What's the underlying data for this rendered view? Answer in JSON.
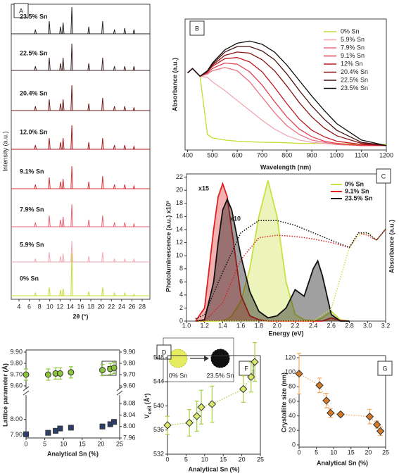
{
  "chart_data": [
    {
      "type": "spectra",
      "panel": "A",
      "xlabel": "2θ (°)",
      "ylabel": "Intensity (a.u.)",
      "xlim": [
        2.5,
        29.5
      ],
      "xticks": [
        4,
        6,
        8,
        10,
        12,
        14,
        16,
        18,
        20,
        22,
        24,
        26,
        28
      ],
      "x": [
        7.2,
        9.9,
        12.1,
        12.6,
        14.3,
        17.6,
        20.3,
        22.6,
        24.6,
        26.4
      ],
      "series": [
        {
          "name": "23.5% Sn",
          "color": "#222222",
          "values": [
            0.3,
            0.9,
            0.5,
            0.8,
            1.9,
            0.5,
            0.9,
            0.3,
            0.4,
            0.3
          ]
        },
        {
          "name": "22.5% Sn",
          "color": "#3a2020",
          "values": [
            0.3,
            0.9,
            0.5,
            0.9,
            1.9,
            0.5,
            0.9,
            0.3,
            0.3,
            0.3
          ]
        },
        {
          "name": "20.4% Sn",
          "color": "#6b1a1a",
          "values": [
            0.3,
            0.8,
            0.5,
            0.8,
            1.8,
            0.5,
            0.9,
            0.3,
            0.3,
            0.2
          ]
        },
        {
          "name": "12.0% Sn",
          "color": "#a8181e",
          "values": [
            0.3,
            0.8,
            0.5,
            0.8,
            1.7,
            0.5,
            0.8,
            0.3,
            0.3,
            0.2
          ]
        },
        {
          "name": "9.1% Sn",
          "color": "#d83038",
          "values": [
            0.3,
            0.8,
            0.5,
            0.7,
            1.6,
            0.5,
            0.9,
            0.3,
            0.3,
            0.2
          ]
        },
        {
          "name": "7.9% Sn",
          "color": "#e86070",
          "values": [
            0.3,
            0.8,
            0.5,
            0.7,
            1.6,
            0.5,
            0.8,
            0.3,
            0.3,
            0.2
          ]
        },
        {
          "name": "5.9% Sn",
          "color": "#f2a8b4",
          "values": [
            0.2,
            0.7,
            0.4,
            0.6,
            1.5,
            0.4,
            0.7,
            0.2,
            0.2,
            0.2
          ]
        },
        {
          "name": "0% Sn",
          "color": "#c8dc32",
          "values": [
            0.2,
            0.6,
            0.4,
            0.5,
            3.0,
            0.3,
            0.6,
            0.2,
            0.2,
            0.1
          ]
        }
      ]
    },
    {
      "type": "line",
      "panel": "B",
      "xlabel": "Wavelength (nm)",
      "ylabel": "Absorbance (a.u.)",
      "xlim": [
        390,
        1200
      ],
      "xticks": [
        400,
        500,
        600,
        700,
        800,
        900,
        1000,
        1100,
        1200
      ],
      "ylim": [
        -0.04,
        1.15
      ],
      "x": [
        400,
        420,
        450,
        480,
        500,
        550,
        600,
        650,
        700,
        750,
        800,
        850,
        900,
        950,
        1000,
        1100,
        1200
      ],
      "series": [
        {
          "name": "0% Sn",
          "color": "#c8dc32",
          "values": [
            0.66,
            0.7,
            0.63,
            0.1,
            0.07,
            0.05,
            0.04,
            0.035,
            0.03,
            0.03,
            0.025,
            0.02,
            0.02,
            0.02,
            0.02,
            0.01,
            0.01
          ]
        },
        {
          "name": "5.9% Sn",
          "color": "#f2a8b4",
          "values": [
            0.66,
            0.7,
            0.63,
            0.62,
            0.58,
            0.5,
            0.41,
            0.32,
            0.23,
            0.15,
            0.09,
            0.05,
            0.03,
            0.02,
            0.01,
            0,
            0
          ]
        },
        {
          "name": "7.9% Sn",
          "color": "#ea7080",
          "values": [
            0.66,
            0.7,
            0.63,
            0.65,
            0.68,
            0.71,
            0.68,
            0.58,
            0.44,
            0.3,
            0.18,
            0.1,
            0.05,
            0.03,
            0.01,
            0,
            0
          ]
        },
        {
          "name": "9.1% Sn",
          "color": "#e04050",
          "values": [
            0.66,
            0.7,
            0.63,
            0.66,
            0.7,
            0.75,
            0.74,
            0.67,
            0.55,
            0.4,
            0.26,
            0.15,
            0.08,
            0.04,
            0.02,
            0,
            0
          ]
        },
        {
          "name": "12% Sn",
          "color": "#c01822",
          "values": [
            0.66,
            0.7,
            0.63,
            0.67,
            0.72,
            0.79,
            0.8,
            0.76,
            0.67,
            0.53,
            0.38,
            0.24,
            0.14,
            0.08,
            0.04,
            0.01,
            0
          ]
        },
        {
          "name": "20.4% Sn",
          "color": "#8a1414",
          "values": [
            0.66,
            0.7,
            0.63,
            0.67,
            0.73,
            0.82,
            0.85,
            0.84,
            0.78,
            0.68,
            0.54,
            0.39,
            0.26,
            0.16,
            0.09,
            0.02,
            0
          ]
        },
        {
          "name": "22.5% Sn",
          "color": "#4a1414",
          "values": [
            0.66,
            0.7,
            0.63,
            0.68,
            0.74,
            0.85,
            0.9,
            0.9,
            0.86,
            0.78,
            0.65,
            0.5,
            0.36,
            0.24,
            0.14,
            0.03,
            0
          ]
        },
        {
          "name": "23.5% Sn",
          "color": "#111111",
          "values": [
            0.66,
            0.7,
            0.63,
            0.68,
            0.75,
            0.87,
            0.93,
            0.95,
            0.92,
            0.85,
            0.73,
            0.59,
            0.45,
            0.32,
            0.2,
            0.05,
            0
          ]
        }
      ]
    },
    {
      "type": "area",
      "panel": "C",
      "xlabel": "Energy (eV)",
      "ylabel": "Photoluminescence (a.u.) x10³",
      "y2label": "Absorbance (a.u.)",
      "xlim": [
        1.0,
        3.2
      ],
      "xticks": [
        {
          "value": 1,
          "label": "1.0"
        },
        1.2,
        1.4,
        1.6,
        1.8,
        {
          "value": 2,
          "label": "2.0"
        },
        2.2,
        2.4,
        2.6,
        2.8,
        {
          "value": 3,
          "label": "3.0"
        },
        3.2
      ],
      "ylim": [
        0,
        22.5
      ],
      "yticks": [
        0,
        2,
        4,
        6,
        8,
        10,
        12,
        14,
        16,
        18,
        20,
        22
      ],
      "y2lim": [
        0,
        1.2
      ],
      "annotations": [
        {
          "text": "x15",
          "color": "#e02020"
        },
        {
          "text": "x10",
          "color": "#111111"
        }
      ],
      "x": [
        1.1,
        1.2,
        1.3,
        1.35,
        1.4,
        1.45,
        1.5,
        1.6,
        1.7,
        1.8,
        1.9,
        2.0,
        2.1,
        2.2,
        2.3,
        2.4,
        2.45,
        2.5,
        2.6,
        2.7,
        2.8
      ],
      "series": [
        {
          "name": "0% Sn",
          "color": "#c8e040",
          "values": [
            0,
            0,
            0,
            0,
            0.1,
            0.3,
            0.8,
            3,
            8,
            16,
            21.5,
            16,
            6,
            1,
            0.2,
            0.1,
            0.2,
            0.5,
            1.5,
            0.2,
            0
          ]
        },
        {
          "name": "9.1% Sn",
          "color": "#e02020",
          "values": [
            0,
            2,
            14,
            19,
            21,
            19,
            14,
            4,
            0.8,
            0.2,
            0,
            0,
            0,
            0,
            0,
            0,
            0,
            0,
            0.5,
            0.1,
            0
          ]
        },
        {
          "name": "23.5% Sn",
          "color": "#111111",
          "values": [
            0,
            0.2,
            6,
            12,
            17,
            18.6,
            17,
            10,
            4.5,
            1.5,
            0.5,
            0.8,
            2,
            4.8,
            3.8,
            8,
            9.2,
            7,
            1,
            0,
            0
          ]
        }
      ],
      "x2": [
        1.1,
        1.2,
        1.4,
        1.6,
        1.8,
        2.0,
        2.2,
        2.4,
        2.6,
        2.8,
        2.9,
        3.0,
        3.1,
        3.2
      ],
      "absorbance": [
        {
          "color": "#c8e040",
          "axis": "y2",
          "values": [
            0,
            0,
            0,
            0,
            0,
            0,
            0,
            0,
            0.1,
            0.6,
            0.7,
            0.72,
            0.66,
            0.75
          ]
        },
        {
          "color": "#e02020",
          "axis": "y2",
          "values": [
            0,
            0,
            0.15,
            0.5,
            0.68,
            0.7,
            0.69,
            0.67,
            0.64,
            0.6,
            0.72,
            0.7,
            0.66,
            0.75
          ]
        },
        {
          "color": "#111111",
          "axis": "y2",
          "values": [
            0.02,
            0.05,
            0.4,
            0.72,
            0.82,
            0.82,
            0.78,
            0.72,
            0.66,
            0.6,
            0.72,
            0.72,
            0.66,
            0.75
          ]
        }
      ]
    },
    {
      "type": "diagram",
      "panel": "D",
      "labels": [
        "0% Sn",
        "23.5% Sn"
      ]
    },
    {
      "type": "scatter",
      "panel": "E",
      "xlabel": "Analytical Sn (%)",
      "ylabel": "Lattice parameter (Å)",
      "xlim": [
        0,
        25
      ],
      "xticks": [
        0,
        5,
        10,
        15,
        20,
        25
      ],
      "ylim": [
        9.6,
        9.9
      ],
      "yticks": [
        {
          "value": 9.6,
          "label": "9.60"
        },
        {
          "value": 9.7,
          "label": "9.70"
        },
        {
          "value": 9.8,
          "label": "9.80"
        },
        {
          "value": 9.9,
          "label": "9.90"
        }
      ],
      "y2ticks": [
        {
          "value": 9.6,
          "label": "9.60"
        },
        {
          "value": 9.7,
          "label": "9.70"
        },
        {
          "value": 9.8,
          "label": "9.80"
        },
        {
          "value": 9.9,
          "label": "9.90"
        }
      ],
      "ylim_lower": [
        7.88,
        8.14
      ],
      "yticks_lower": [
        {
          "value": 7.9,
          "label": "7.90"
        },
        {
          "value": 8,
          "label": "8.00"
        }
      ],
      "y2lim_lower": [
        7.96,
        8.1
      ],
      "y2ticks_lower": [
        7.96,
        {
          "value": 8,
          "label": "8.00"
        },
        8.04,
        8.08
      ],
      "x": [
        0,
        5.9,
        7.9,
        9.1,
        12,
        20.4,
        22.5,
        23.5
      ],
      "series": [
        {
          "color": "#8cc43c",
          "marker": "circle",
          "values": [
            9.7,
            9.7,
            9.71,
            9.71,
            9.72,
            9.74,
            9.75,
            9.76
          ],
          "errors": [
            0.05,
            0.05,
            0.05,
            0.05,
            0.05,
            0.05,
            0.05,
            0.05
          ]
        },
        {
          "color": "#2b3f6c",
          "marker": "square",
          "axis": "y2",
          "values": [
            7.973,
            7.978,
            7.985,
            7.993,
            7.996,
            8.0,
            8.008,
            8.016
          ],
          "errors": [
            0.008,
            0.008,
            0.008,
            0.008,
            0.008,
            0.008,
            0.008,
            0.008
          ]
        }
      ]
    },
    {
      "type": "scatter",
      "panel": "F",
      "xlabel": "Analytical Sn (%)",
      "ylabel": "V",
      "ylabel_sub": "cell",
      "ylabel_unit": " (Å³)",
      "xlim": [
        0,
        25
      ],
      "xticks": [
        0,
        5,
        10,
        15,
        20,
        25
      ],
      "ylim": [
        532,
        548
      ],
      "yticks": [
        532,
        536,
        540,
        544,
        548
      ],
      "x": [
        0,
        5.9,
        7.9,
        9.1,
        12,
        20.4,
        22.5,
        23.5
      ],
      "series": [
        {
          "color": "#dbe86a",
          "marker": "diamond",
          "errorcolor": "#a6d040",
          "values": [
            536.8,
            537.2,
            538.3,
            539.8,
            540.3,
            542.8,
            544.8,
            547.3
          ],
          "errors": [
            1.5,
            2.2,
            2.5,
            2.8,
            3,
            2.2,
            2.5,
            3.2
          ]
        }
      ]
    },
    {
      "type": "scatter",
      "panel": "G",
      "xlabel": "Analytical Sn (%)",
      "ylabel": "Crystallite size (nm)",
      "xlim": [
        0,
        25
      ],
      "xticks": [
        0,
        5,
        10,
        15,
        20,
        25
      ],
      "ylim": [
        -3,
        120
      ],
      "yticks": [
        0,
        20,
        40,
        60,
        80,
        100,
        120
      ],
      "x": [
        0,
        5.9,
        7.9,
        9.1,
        12,
        20.4,
        22.5,
        23.5
      ],
      "series": [
        {
          "color": "#d27a2a",
          "marker": "diamond",
          "errorcolor": "#f2a860",
          "values": [
            98,
            82,
            61,
            44,
            42,
            39,
            28,
            19
          ],
          "errors": [
            28,
            10,
            10,
            6,
            3,
            10,
            5,
            6
          ]
        }
      ]
    }
  ]
}
